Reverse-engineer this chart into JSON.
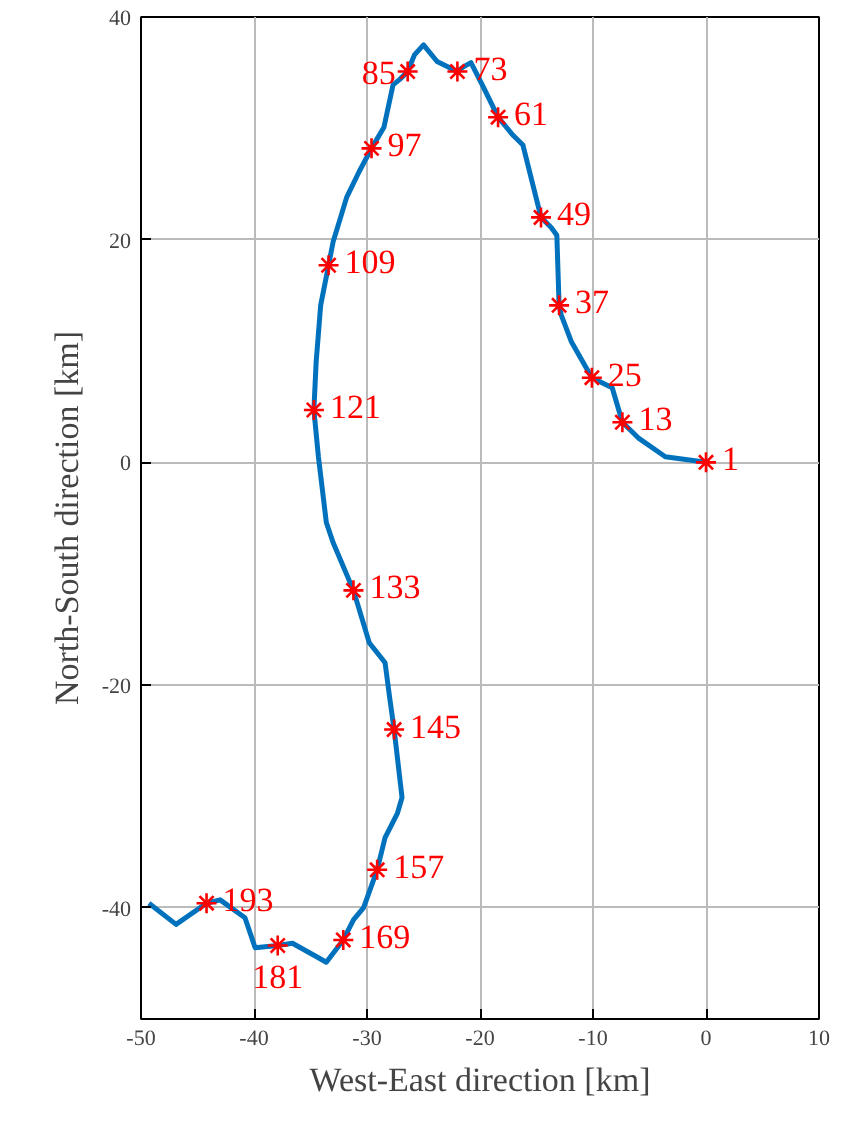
{
  "chart_data": {
    "type": "line",
    "xlabel": "West-East direction [km]",
    "ylabel": "North-South direction [km]",
    "xlim": [
      -50,
      10
    ],
    "ylim": [
      -50,
      40
    ],
    "xticks": [
      -50,
      -40,
      -30,
      -20,
      -10,
      0,
      10
    ],
    "yticks": [
      -40,
      -20,
      0,
      20,
      40
    ],
    "grid": true,
    "series": [
      {
        "color": "#0072bd",
        "line_style": "solid",
        "x": [
          0,
          -3.6,
          -6,
          -7.4,
          -8.3,
          -10.1,
          -11.9,
          -12.8,
          -13,
          -13.2,
          -13.7,
          -14.6,
          -16.2,
          -17.1,
          -18.4,
          -19.7,
          -20.8,
          -21.5,
          -22,
          -23.8,
          -25,
          -25.8,
          -26.4,
          -27.1,
          -27.7,
          -28.5,
          -29.6,
          -30.7,
          -31.8,
          -33,
          -33.4,
          -34.1,
          -34.5,
          -34.7,
          -34.3,
          -33.6,
          -33,
          -31.2,
          -29.8,
          -28.4,
          -28,
          -27.6,
          -26.9,
          -27.3,
          -28.4,
          -29.1,
          -30.3,
          -31.2,
          -32.1,
          -33.6,
          -34.3,
          -36.6,
          -37.9,
          -39.9,
          -40.8,
          -43,
          -44.2,
          -46.9,
          -49.3
        ],
        "values": [
          0,
          0.5,
          2.2,
          3.6,
          6.7,
          7.6,
          10.8,
          13.2,
          14.1,
          20.4,
          21.1,
          22,
          28.5,
          29.4,
          31,
          33.7,
          35.9,
          35.5,
          35.1,
          36,
          37.5,
          36.6,
          35.1,
          34.4,
          33.9,
          30.1,
          28.2,
          26.1,
          23.8,
          19.8,
          17.7,
          14.1,
          9,
          4.7,
          0.5,
          -5.4,
          -7.2,
          -11.5,
          -16.2,
          -18,
          -21.1,
          -24,
          -30.1,
          -31.5,
          -33.7,
          -36.6,
          -40,
          -41.1,
          -42.9,
          -44.9,
          -44.5,
          -43.2,
          -43.4,
          -43.6,
          -40.9,
          -39.3,
          -39.6,
          -41.5,
          -39.6
        ]
      },
      {
        "type": "scatter",
        "color": "#ff0000",
        "marker": "cross",
        "x": [
          0,
          -7.4,
          -10.1,
          -13,
          -14.6,
          -18.4,
          -22,
          -26.4,
          -29.6,
          -33.4,
          -34.7,
          -31.2,
          -27.6,
          -29.1,
          -32.1,
          -37.9,
          -44.2
        ],
        "values": [
          0,
          3.6,
          7.6,
          14.1,
          22,
          31,
          35.1,
          35.1,
          28.2,
          17.7,
          4.7,
          -11.5,
          -24,
          -36.6,
          -42.9,
          -43.4,
          -39.6
        ]
      }
    ],
    "annotations": [
      {
        "text": "1",
        "x": 0,
        "y": 0
      },
      {
        "text": "13",
        "x": -7.4,
        "y": 3.6
      },
      {
        "text": "25",
        "x": -10.1,
        "y": 7.6
      },
      {
        "text": "37",
        "x": -13,
        "y": 14.1
      },
      {
        "text": "49",
        "x": -14.6,
        "y": 22
      },
      {
        "text": "61",
        "x": -18.4,
        "y": 31
      },
      {
        "text": "73",
        "x": -22,
        "y": 35.1
      },
      {
        "text": "85",
        "x": -26.4,
        "y": 35.1
      },
      {
        "text": "97",
        "x": -29.6,
        "y": 28.2
      },
      {
        "text": "109",
        "x": -33.4,
        "y": 17.7
      },
      {
        "text": "121",
        "x": -34.7,
        "y": 4.7
      },
      {
        "text": "133",
        "x": -31.2,
        "y": -11.5
      },
      {
        "text": "145",
        "x": -27.6,
        "y": -24
      },
      {
        "text": "157",
        "x": -29.1,
        "y": -36.6
      },
      {
        "text": "169",
        "x": -32.1,
        "y": -42.9
      },
      {
        "text": "181",
        "x": -37.9,
        "y": -43.4
      },
      {
        "text": "193",
        "x": -44.2,
        "y": -39.6
      }
    ]
  }
}
